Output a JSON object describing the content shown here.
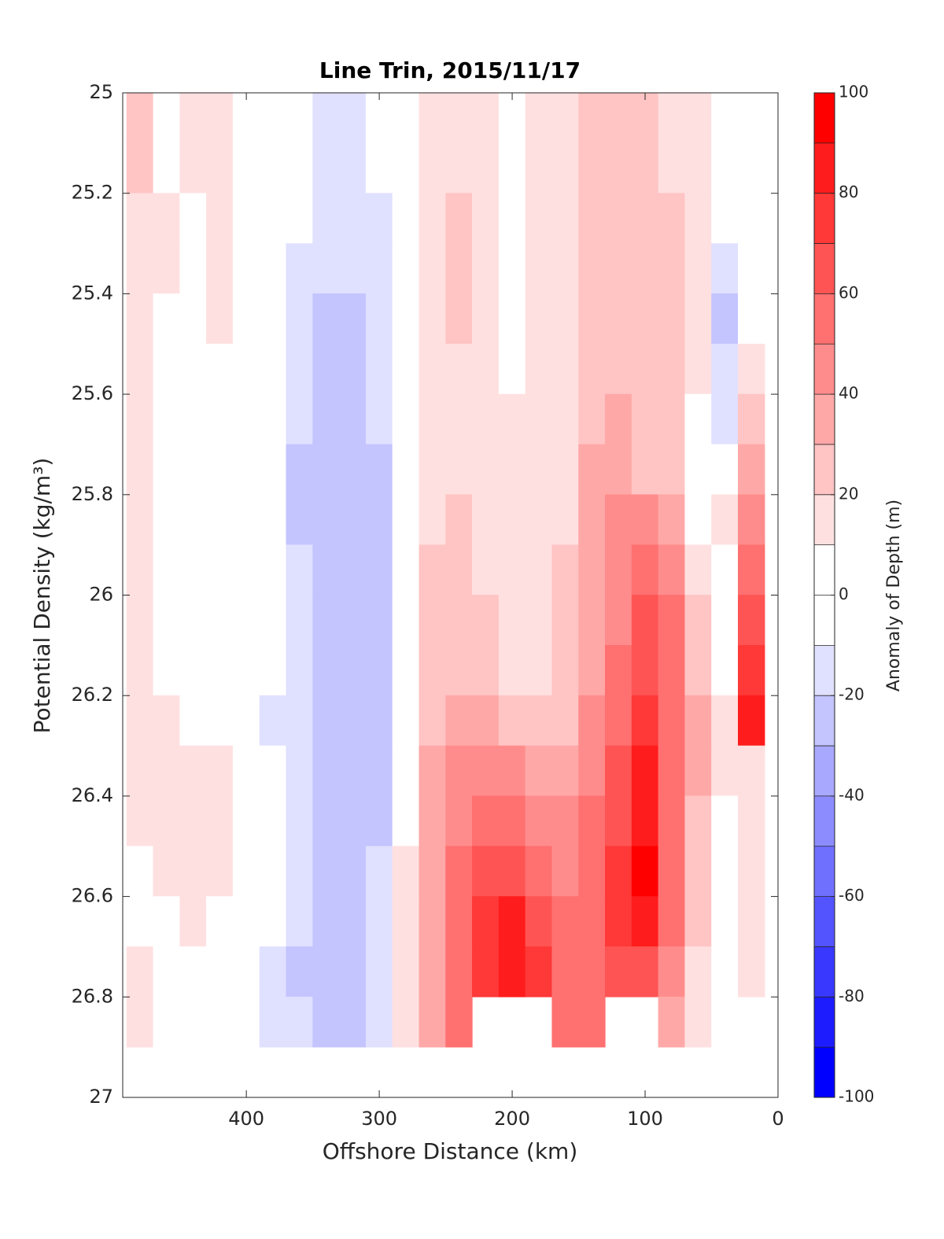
{
  "chart_data": {
    "type": "contourf",
    "title": "Line Trin, 2015/11/17",
    "xlabel": "Offshore Distance (km)",
    "ylabel": "Potential Density (kg/m³)",
    "colorbar_label": "Anomaly of Depth (m)",
    "x": [
      480,
      460,
      440,
      420,
      400,
      380,
      360,
      340,
      320,
      300,
      280,
      260,
      240,
      220,
      200,
      180,
      160,
      140,
      120,
      100,
      80,
      60,
      40,
      20
    ],
    "y": [
      25.05,
      25.15,
      25.25,
      25.35,
      25.45,
      25.55,
      25.65,
      25.75,
      25.85,
      25.95,
      26.05,
      26.15,
      26.25,
      26.35,
      26.45,
      26.55,
      26.65,
      26.75,
      26.85
    ],
    "z": [
      [
        22,
        5,
        15,
        15,
        5,
        0,
        -5,
        -15,
        -15,
        -5,
        5,
        15,
        15,
        15,
        5,
        15,
        15,
        25,
        25,
        25,
        15,
        15,
        5,
        5
      ],
      [
        22,
        5,
        15,
        15,
        5,
        0,
        -5,
        -15,
        -15,
        -5,
        5,
        15,
        15,
        15,
        5,
        15,
        15,
        25,
        25,
        25,
        15,
        15,
        5,
        5
      ],
      [
        15,
        15,
        5,
        15,
        5,
        0,
        -5,
        -15,
        -15,
        -15,
        5,
        15,
        25,
        15,
        5,
        15,
        15,
        25,
        25,
        25,
        25,
        15,
        -5,
        5
      ],
      [
        15,
        15,
        5,
        15,
        5,
        0,
        -15,
        -15,
        -15,
        -15,
        5,
        15,
        25,
        15,
        5,
        15,
        15,
        25,
        25,
        25,
        25,
        15,
        -15,
        5
      ],
      [
        15,
        5,
        5,
        15,
        5,
        0,
        -15,
        -25,
        -25,
        -15,
        5,
        15,
        25,
        15,
        5,
        15,
        15,
        25,
        25,
        25,
        25,
        15,
        -25,
        5
      ],
      [
        15,
        5,
        5,
        5,
        5,
        0,
        -15,
        -25,
        -25,
        -15,
        5,
        15,
        15,
        15,
        5,
        15,
        15,
        25,
        25,
        25,
        25,
        15,
        -15,
        15
      ],
      [
        15,
        5,
        5,
        5,
        5,
        0,
        -15,
        -25,
        -25,
        -15,
        5,
        15,
        15,
        15,
        15,
        15,
        15,
        25,
        35,
        25,
        25,
        5,
        -15,
        25
      ],
      [
        15,
        5,
        5,
        5,
        5,
        0,
        -25,
        -25,
        -25,
        -25,
        5,
        15,
        15,
        15,
        15,
        15,
        15,
        35,
        35,
        25,
        25,
        5,
        5,
        35
      ],
      [
        15,
        5,
        5,
        5,
        5,
        0,
        -25,
        -25,
        -25,
        -25,
        5,
        15,
        25,
        15,
        15,
        15,
        15,
        35,
        45,
        45,
        35,
        5,
        15,
        45
      ],
      [
        15,
        5,
        5,
        5,
        5,
        0,
        -15,
        -25,
        -25,
        -25,
        5,
        25,
        25,
        15,
        15,
        15,
        25,
        35,
        45,
        55,
        45,
        15,
        5,
        55
      ],
      [
        15,
        5,
        5,
        5,
        5,
        0,
        -15,
        -25,
        -25,
        -25,
        5,
        25,
        25,
        25,
        15,
        15,
        25,
        35,
        45,
        65,
        55,
        25,
        5,
        65
      ],
      [
        15,
        5,
        5,
        5,
        5,
        0,
        -15,
        -25,
        -25,
        -25,
        5,
        25,
        25,
        25,
        15,
        15,
        25,
        35,
        55,
        65,
        55,
        25,
        5,
        75
      ],
      [
        15,
        15,
        5,
        5,
        5,
        -15,
        -15,
        -25,
        -25,
        -25,
        5,
        25,
        35,
        35,
        25,
        25,
        25,
        45,
        55,
        75,
        55,
        35,
        15,
        85
      ],
      [
        15,
        15,
        15,
        15,
        5,
        0,
        -15,
        -25,
        -25,
        -25,
        5,
        35,
        45,
        45,
        45,
        35,
        35,
        45,
        65,
        85,
        55,
        35,
        15,
        15
      ],
      [
        15,
        15,
        15,
        15,
        5,
        0,
        -15,
        -25,
        -25,
        -25,
        5,
        35,
        45,
        55,
        55,
        45,
        45,
        55,
        65,
        85,
        55,
        25,
        5,
        15
      ],
      [
        5,
        15,
        15,
        15,
        5,
        -5,
        -15,
        -25,
        -25,
        -15,
        15,
        35,
        55,
        65,
        65,
        55,
        45,
        55,
        75,
        95,
        55,
        25,
        -5,
        15
      ],
      [
        5,
        5,
        15,
        5,
        5,
        -5,
        -15,
        -25,
        -25,
        -15,
        15,
        35,
        55,
        75,
        85,
        65,
        55,
        55,
        75,
        85,
        55,
        25,
        -5,
        15
      ],
      [
        15,
        5,
        5,
        5,
        5,
        -15,
        -25,
        -25,
        -25,
        -15,
        15,
        35,
        55,
        75,
        85,
        75,
        55,
        55,
        65,
        65,
        45,
        15,
        5,
        15
      ],
      [
        15,
        5,
        5,
        5,
        5,
        -15,
        -15,
        -25,
        -25,
        -15,
        15,
        35,
        55,
        null,
        null,
        null,
        55,
        55,
        null,
        null,
        35,
        15,
        5,
        null
      ]
    ],
    "xlim": [
      493,
      0
    ],
    "xticks": [
      400,
      300,
      200,
      100,
      0
    ],
    "ylim": [
      25,
      27
    ],
    "yticks": [
      25,
      25.2,
      25.4,
      25.6,
      25.8,
      26,
      26.2,
      26.4,
      26.6,
      26.8,
      27
    ],
    "ydirection": "reverse",
    "levels": [
      -100,
      -90,
      -80,
      -70,
      -60,
      -50,
      -40,
      -30,
      -20,
      -10,
      0,
      10,
      20,
      30,
      40,
      50,
      60,
      70,
      80,
      90,
      100
    ],
    "colors": [
      "#0000ff",
      "#1c1cff",
      "#3838ff",
      "#5454ff",
      "#7070ff",
      "#8c8cff",
      "#a8a8ff",
      "#c4c4ff",
      "#e0e0ff",
      "#ffffff",
      "#ffffff",
      "#ffe0e0",
      "#ffc4c4",
      "#ffa8a8",
      "#ff8c8c",
      "#ff7070",
      "#ff5454",
      "#ff3838",
      "#ff1c1c",
      "#ff0000"
    ],
    "cticks": [
      -100,
      -80,
      -60,
      -40,
      -20,
      0,
      20,
      40,
      60,
      80,
      100
    ]
  }
}
